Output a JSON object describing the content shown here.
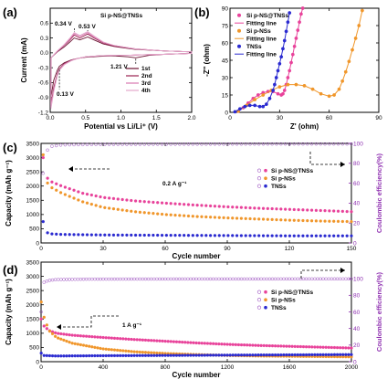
{
  "colors": {
    "si_pns_tns": "#e8429a",
    "si_pns": "#f0962a",
    "tns": "#2a2ad0",
    "ce": "#9b4fc0",
    "cv1": "#6a1030",
    "cv2": "#9a2050",
    "cv3": "#d878b0",
    "cv4": "#e4a8cc"
  },
  "chart_data": [
    {
      "panel": "(a)",
      "type": "line",
      "title": "Si p-NS@TNSs",
      "xlabel": "Potential vs Li/Li⁺ (V)",
      "ylabel": "Current (mA)",
      "xlim": [
        0.0,
        2.0
      ],
      "ylim": [
        -1.2,
        0.9
      ],
      "xticks": [
        "0.0",
        "0.5",
        "1.0",
        "1.5",
        "2.0"
      ],
      "yticks": [
        "-1.2",
        "-0.9",
        "-0.6",
        "-0.3",
        "0.0",
        "0.3",
        "0.6"
      ],
      "legend": [
        "1st",
        "2nd",
        "3rd",
        "4th"
      ],
      "annotations": [
        "0.34 V",
        "0.53 V",
        "1.21 V",
        "0.13 V"
      ],
      "series": [
        {
          "name": "1st",
          "x": [
            0.01,
            0.05,
            0.1,
            0.13,
            0.2,
            0.3,
            0.4,
            0.5,
            0.7,
            0.9,
            1.1,
            1.21,
            1.4,
            1.6,
            1.8,
            2.0
          ],
          "y": [
            -0.9,
            -0.55,
            -0.35,
            -0.27,
            -0.2,
            -0.14,
            -0.11,
            -0.09,
            -0.07,
            -0.06,
            -0.08,
            -0.1,
            -0.05,
            -0.03,
            -0.02,
            -0.01
          ]
        },
        {
          "name": "2nd",
          "x": [
            0.01,
            0.05,
            0.1,
            0.13,
            0.2,
            0.3,
            0.4,
            0.5,
            0.7,
            0.9,
            1.1,
            1.3,
            1.6,
            2.0
          ],
          "y": [
            -1.05,
            -0.7,
            -0.42,
            -0.32,
            -0.22,
            -0.15,
            -0.11,
            -0.08,
            -0.06,
            -0.05,
            -0.05,
            -0.04,
            -0.03,
            -0.01
          ]
        },
        {
          "name": "3rd",
          "x": [
            0.01,
            0.05,
            0.1,
            0.13,
            0.2,
            0.3,
            0.4,
            0.5,
            0.7,
            0.9,
            1.1,
            1.3,
            1.6,
            2.0
          ],
          "y": [
            -1.1,
            -0.75,
            -0.45,
            -0.34,
            -0.23,
            -0.15,
            -0.11,
            -0.08,
            -0.06,
            -0.05,
            -0.05,
            -0.04,
            -0.03,
            -0.01
          ]
        },
        {
          "name": "4th",
          "x": [
            0.01,
            0.05,
            0.1,
            0.13,
            0.2,
            0.3,
            0.4,
            0.5,
            0.7,
            0.9,
            1.1,
            1.3,
            1.6,
            2.0
          ],
          "y": [
            -1.13,
            -0.78,
            -0.46,
            -0.35,
            -0.24,
            -0.16,
            -0.11,
            -0.08,
            -0.06,
            -0.05,
            -0.05,
            -0.04,
            -0.03,
            -0.01
          ]
        }
      ],
      "anodic": [
        {
          "name": "1st",
          "x": [
            0.01,
            0.1,
            0.2,
            0.28,
            0.34,
            0.42,
            0.53,
            0.62,
            0.75,
            0.9,
            1.2,
            1.6,
            2.0
          ],
          "y": [
            -0.1,
            0.02,
            0.12,
            0.22,
            0.3,
            0.26,
            0.32,
            0.26,
            0.18,
            0.13,
            0.07,
            0.04,
            0.02
          ]
        },
        {
          "name": "2nd",
          "x": [
            0.01,
            0.1,
            0.2,
            0.28,
            0.34,
            0.42,
            0.53,
            0.62,
            0.75,
            0.9,
            1.2,
            1.6,
            2.0
          ],
          "y": [
            -0.1,
            0.03,
            0.15,
            0.26,
            0.36,
            0.3,
            0.38,
            0.3,
            0.2,
            0.14,
            0.08,
            0.04,
            0.02
          ]
        },
        {
          "name": "3rd",
          "x": [
            0.01,
            0.1,
            0.2,
            0.28,
            0.34,
            0.42,
            0.53,
            0.62,
            0.75,
            0.9,
            1.2,
            1.6,
            2.0
          ],
          "y": [
            -0.1,
            0.03,
            0.16,
            0.28,
            0.39,
            0.33,
            0.41,
            0.32,
            0.21,
            0.15,
            0.08,
            0.04,
            0.02
          ]
        },
        {
          "name": "4th",
          "x": [
            0.01,
            0.1,
            0.2,
            0.28,
            0.34,
            0.42,
            0.53,
            0.62,
            0.75,
            0.9,
            1.2,
            1.6,
            2.0
          ],
          "y": [
            -0.1,
            0.04,
            0.17,
            0.3,
            0.41,
            0.35,
            0.43,
            0.34,
            0.22,
            0.15,
            0.08,
            0.04,
            0.02
          ]
        }
      ]
    },
    {
      "panel": "(b)",
      "type": "scatter",
      "xlabel": "Z' (ohm)",
      "ylabel": "-Z'' (ohm)",
      "xlim": [
        0,
        90
      ],
      "ylim": [
        0,
        90
      ],
      "xticks": [
        "0",
        "30",
        "60",
        "90"
      ],
      "yticks": [
        "0",
        "15",
        "30",
        "45",
        "60",
        "75",
        "90"
      ],
      "legend": [
        "Si p-NS@TNSs",
        "Fitting line",
        "Si p-NSs",
        "Fitting line",
        "TNSs",
        "Fitting line"
      ],
      "series": [
        {
          "name": "Si p-NS@TNSs",
          "x": [
            5,
            8,
            11,
            14,
            17,
            20,
            23,
            26,
            29,
            31,
            32,
            33,
            34,
            35,
            36,
            37,
            38,
            39,
            40,
            41,
            42,
            43,
            44
          ],
          "y": [
            1,
            4,
            8,
            12,
            15,
            17,
            18,
            18,
            16,
            15,
            16,
            19,
            24,
            30,
            36,
            43,
            50,
            57,
            64,
            71,
            78,
            85,
            90
          ]
        },
        {
          "name": "Si p-NSs",
          "x": [
            5,
            10,
            15,
            20,
            25,
            30,
            35,
            40,
            45,
            50,
            55,
            60,
            63,
            66,
            68,
            70,
            72,
            74,
            76,
            78,
            80
          ],
          "y": [
            1,
            6,
            11,
            15,
            19,
            22,
            24,
            24,
            23,
            20,
            16,
            14,
            15,
            20,
            27,
            35,
            44,
            54,
            64,
            75,
            88
          ]
        },
        {
          "name": "TNSs",
          "x": [
            3,
            6,
            9,
            12,
            15,
            18,
            20,
            22,
            24,
            26,
            27,
            28,
            29,
            30,
            31,
            32,
            33,
            34,
            35,
            36
          ],
          "y": [
            0.5,
            3,
            5,
            6,
            6,
            5,
            5,
            7,
            12,
            19,
            24,
            30,
            36,
            42,
            48,
            55,
            62,
            70,
            78,
            86
          ]
        }
      ]
    },
    {
      "panel": "(c)",
      "type": "scatter",
      "xlabel": "Cycle number",
      "ylabel": "Capacity (mAh g⁻¹)",
      "y2label": "Coulombic efficiency(%)",
      "xlim": [
        0,
        150
      ],
      "ylim": [
        0,
        3500
      ],
      "y2lim": [
        0,
        100
      ],
      "xticks": [
        "0",
        "30",
        "60",
        "90",
        "120",
        "150"
      ],
      "yticks": [
        "0",
        "500",
        "1000",
        "1500",
        "2000",
        "2500",
        "3000",
        "3500"
      ],
      "y2ticks": [
        "0",
        "20",
        "40",
        "60",
        "80",
        "100"
      ],
      "legend": [
        "Si p-NS@TNSs",
        "Si p-NSs",
        "TNSs"
      ],
      "annotations": [
        "0.2 A g⁻¹"
      ],
      "series": [
        {
          "name": "Si p-NS@TNSs",
          "x": [
            1,
            2,
            5,
            10,
            20,
            30,
            45,
            60,
            75,
            90,
            105,
            120,
            135,
            150
          ],
          "y": [
            3000,
            2350,
            2150,
            2000,
            1750,
            1600,
            1480,
            1400,
            1330,
            1270,
            1220,
            1180,
            1140,
            1100
          ]
        },
        {
          "name": "Si p-NSs",
          "x": [
            1,
            2,
            5,
            10,
            20,
            30,
            45,
            60,
            75,
            90,
            105,
            120,
            135,
            150
          ],
          "y": [
            3100,
            2200,
            1950,
            1750,
            1450,
            1250,
            1100,
            1000,
            930,
            880,
            840,
            800,
            770,
            750
          ]
        },
        {
          "name": "TNSs",
          "x": [
            1,
            2,
            5,
            10,
            30,
            60,
            90,
            120,
            150
          ],
          "y": [
            750,
            380,
            320,
            300,
            280,
            270,
            260,
            250,
            250
          ]
        }
      ],
      "ce": {
        "x": [
          1,
          2,
          3,
          5,
          10,
          30,
          60,
          90,
          120,
          150
        ],
        "y": [
          70,
          88,
          93,
          97,
          98.5,
          99,
          99.2,
          99.3,
          99.4,
          99.4
        ]
      }
    },
    {
      "panel": "(d)",
      "type": "scatter",
      "xlabel": "Cycle number",
      "ylabel": "Capacity (mAh g⁻¹)",
      "y2label": "Coulombic efficiency(%)",
      "xlim": [
        0,
        2000
      ],
      "ylim": [
        0,
        3500
      ],
      "y2lim": [
        0,
        120
      ],
      "xticks": [
        "0",
        "400",
        "800",
        "1200",
        "1600",
        "2000"
      ],
      "yticks": [
        "0",
        "500",
        "1000",
        "1500",
        "2000",
        "2500",
        "3000",
        "3500"
      ],
      "y2ticks": [
        "0",
        "20",
        "40",
        "60",
        "80",
        "100"
      ],
      "legend": [
        "Si p-NS@TNSs",
        "Si p-NSs",
        "TNSs"
      ],
      "annotations": [
        "1 A g⁻¹"
      ],
      "series": [
        {
          "name": "Si p-NS@TNSs",
          "x": [
            1,
            10,
            50,
            100,
            200,
            400,
            600,
            800,
            1000,
            1200,
            1400,
            1600,
            1800,
            2000
          ],
          "y": [
            1500,
            1300,
            1100,
            1000,
            930,
            850,
            780,
            720,
            660,
            610,
            570,
            540,
            510,
            480
          ]
        },
        {
          "name": "Si p-NSs",
          "x": [
            1,
            10,
            50,
            100,
            200,
            400,
            600,
            800,
            1000,
            1200,
            1400,
            1600,
            1800,
            2000
          ],
          "y": [
            2100,
            1700,
            1100,
            850,
            650,
            450,
            350,
            290,
            250,
            220,
            200,
            190,
            180,
            170
          ]
        },
        {
          "name": "TNSs",
          "x": [
            1,
            10,
            100,
            400,
            800,
            1200,
            1600,
            2000
          ],
          "y": [
            300,
            220,
            200,
            210,
            220,
            230,
            240,
            250
          ]
        }
      ],
      "ce": {
        "x": [
          1,
          5,
          20,
          50,
          100,
          300,
          600,
          1000,
          1400,
          1800,
          2000
        ],
        "y": [
          60,
          90,
          96,
          98,
          99,
          99.5,
          99.6,
          99.7,
          99.7,
          99.8,
          99.8
        ]
      }
    }
  ]
}
